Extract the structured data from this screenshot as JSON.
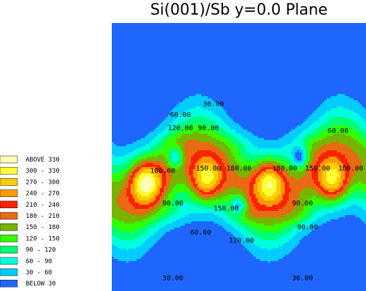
{
  "chart_data": {
    "type": "heatmap",
    "title": "Si(001)/Sb y=0.0 Plane",
    "xlabel": "",
    "ylabel": "",
    "legend": [
      {
        "label": "ABOVE  330",
        "color": "#ffffb3"
      },
      {
        "label": "300 - 330",
        "color": "#ffff33"
      },
      {
        "label": "270 - 300",
        "color": "#ffcc00"
      },
      {
        "label": "240 - 270",
        "color": "#ff9900"
      },
      {
        "label": "210 - 240",
        "color": "#ff2200"
      },
      {
        "label": "180 - 210",
        "color": "#e86a12"
      },
      {
        "label": "150 - 180",
        "color": "#77b400"
      },
      {
        "label": "120 - 150",
        "color": "#33ff00"
      },
      {
        "label": "90 - 120",
        "color": "#00ff77"
      },
      {
        "label": "60 -  90",
        "color": "#00ffdd"
      },
      {
        "label": "30 -  60",
        "color": "#00ccff"
      },
      {
        "label": "BELOW  30",
        "color": "#1f66ff"
      }
    ],
    "contour_labels": [
      {
        "text": "30.00",
        "lx": 0.4,
        "ly": 0.31
      },
      {
        "text": "60.00",
        "lx": 0.27,
        "ly": 0.35
      },
      {
        "text": "90.00",
        "lx": 0.38,
        "ly": 0.4
      },
      {
        "text": "120.00",
        "lx": 0.27,
        "ly": 0.4
      },
      {
        "text": "60.00",
        "lx": 0.89,
        "ly": 0.41
      },
      {
        "text": "180.00",
        "lx": 0.2,
        "ly": 0.56
      },
      {
        "text": "150.00",
        "lx": 0.38,
        "ly": 0.55
      },
      {
        "text": "180.00",
        "lx": 0.5,
        "ly": 0.55
      },
      {
        "text": "180.00",
        "lx": 0.68,
        "ly": 0.55
      },
      {
        "text": "150.00",
        "lx": 0.81,
        "ly": 0.55
      },
      {
        "text": "180.00",
        "lx": 0.94,
        "ly": 0.55
      },
      {
        "text": "90.00",
        "lx": 0.24,
        "ly": 0.68
      },
      {
        "text": "150.00",
        "lx": 0.45,
        "ly": 0.7
      },
      {
        "text": "90.00",
        "lx": 0.75,
        "ly": 0.68
      },
      {
        "text": "90.00",
        "lx": 0.77,
        "ly": 0.77
      },
      {
        "text": "60.00",
        "lx": 0.35,
        "ly": 0.79
      },
      {
        "text": "120.00",
        "lx": 0.51,
        "ly": 0.82
      },
      {
        "text": "30.00",
        "lx": 0.24,
        "ly": 0.96
      },
      {
        "text": "30.00",
        "lx": 0.75,
        "ly": 0.96
      }
    ]
  }
}
